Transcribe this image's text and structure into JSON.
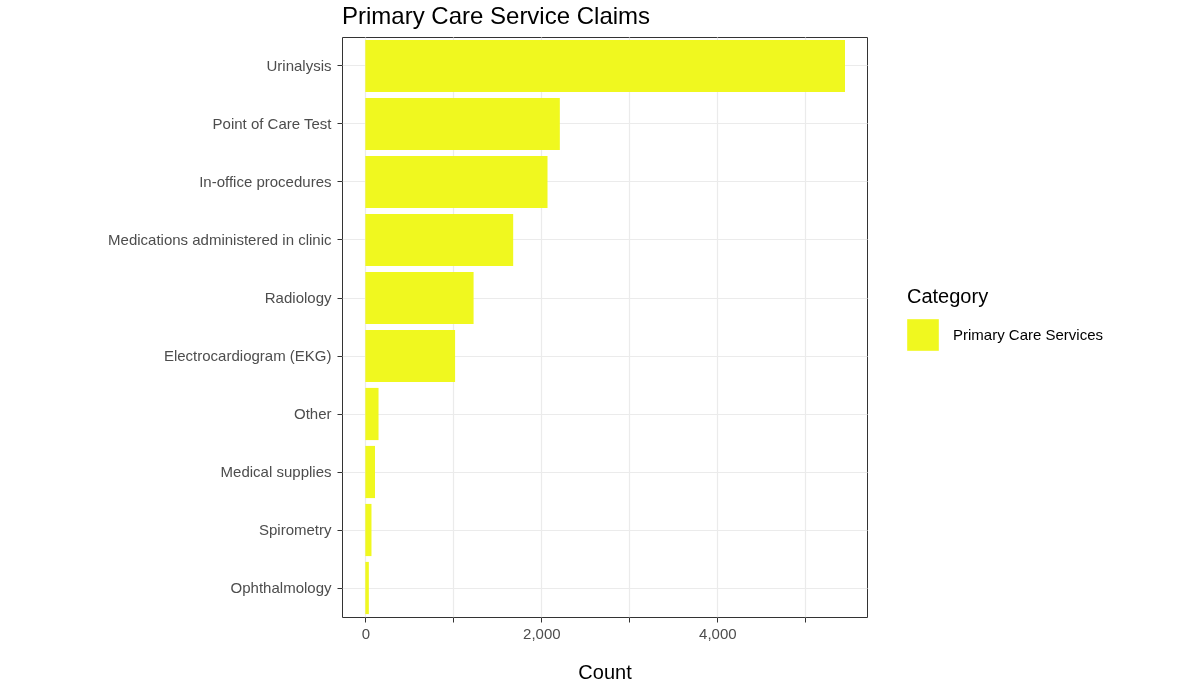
{
  "chart_data": {
    "type": "bar",
    "orientation": "horizontal",
    "title": "Primary Care Service Claims",
    "xlabel": "Count",
    "legend_title": "Category",
    "categories": [
      "Urinalysis",
      "Point of Care Test",
      "In-office procedures",
      "Medications administered in clinic",
      "Radiology",
      "Electrocardiogram (EKG)",
      "Other",
      "Medical supplies",
      "Spirometry",
      "Ophthalmology"
    ],
    "series": [
      {
        "name": "Primary Care Services",
        "color": "#f0f81f",
        "values": [
          5450,
          2210,
          2070,
          1680,
          1230,
          1020,
          150,
          110,
          70,
          40
        ]
      }
    ],
    "xlim": [
      -265,
      5700
    ],
    "xticks": [
      0,
      {
        "value": 1000,
        "label": null
      },
      {
        "value": 2000,
        "label": "2,000"
      },
      {
        "value": 3000,
        "label": null
      },
      {
        "value": 4000,
        "label": "4,000"
      },
      {
        "value": 5000,
        "label": null
      }
    ],
    "grid": true,
    "legend": "right"
  }
}
